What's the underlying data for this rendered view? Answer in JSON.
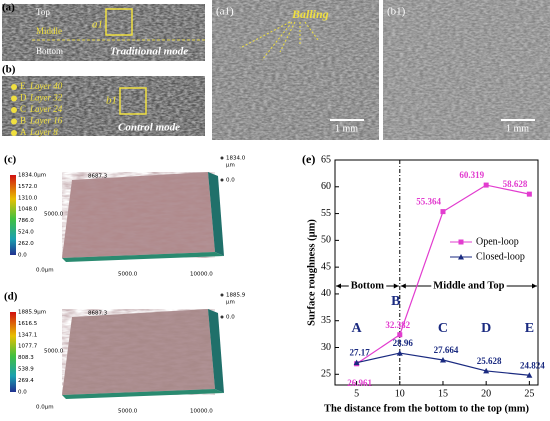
{
  "panels": {
    "a": {
      "label": "(a)",
      "top": "Top",
      "middle": "Middle",
      "bottom": "Bottom",
      "inset": "a1",
      "mode": "Traditional mode"
    },
    "b": {
      "label": "(b)",
      "layers": [
        {
          "letter": "E",
          "text": "Layer 40"
        },
        {
          "letter": "D",
          "text": "Layer 32"
        },
        {
          "letter": "C",
          "text": "Layer 24"
        },
        {
          "letter": "B",
          "text": "Layer 16"
        },
        {
          "letter": "A",
          "text": "Layer 8"
        }
      ],
      "inset": "b1",
      "mode": "Control mode"
    },
    "a1": {
      "label": "(a1)",
      "annotation": "Balling",
      "scale": "1 mm"
    },
    "b1": {
      "label": "(b1)",
      "scale": "1 mm"
    },
    "c": {
      "label": "(c)",
      "colorbar": [
        "1834.0μm",
        "1572.0",
        "1310.0",
        "1048.0",
        "786.0",
        "524.0",
        "262.0",
        "0.0"
      ],
      "z_max": "1834.0",
      "z_unit": "μm",
      "z_min": "0.0",
      "y_max": "8687.3",
      "y_mid": "5000.0",
      "origin": "0.0μm",
      "x_mid": "5000.0",
      "x_max": "10000.0"
    },
    "d": {
      "label": "(d)",
      "colorbar": [
        "1885.9μm",
        "1616.5",
        "1347.1",
        "1077.7",
        "808.3",
        "538.9",
        "269.4",
        "0.0"
      ],
      "z_max": "1885.9",
      "z_unit": "μm",
      "z_min": "0.0",
      "y_max": "8687.3",
      "y_mid": "5000.0",
      "origin": "0.0μm",
      "x_mid": "5000.0",
      "x_max": "10000.0"
    }
  },
  "chart_data": {
    "type": "line",
    "panel_label": "(e)",
    "x_label": "The distance from the bottom to the top (mm)",
    "y_label": "Surface roughness (μm)",
    "x": [
      5,
      10,
      15,
      20,
      25
    ],
    "series": [
      {
        "name": "Open-loop",
        "color": "#e23ccf",
        "values": [
          26.961,
          32.382,
          55.364,
          60.319,
          58.628
        ]
      },
      {
        "name": "Closed-loop",
        "color": "#1a2a80",
        "values": [
          27.17,
          28.96,
          27.664,
          25.628,
          24.824
        ]
      }
    ],
    "point_labels": [
      "A",
      "B",
      "C",
      "D",
      "E"
    ],
    "region_labels": [
      "Bottom",
      "Middle and Top"
    ],
    "divider_x": 10,
    "xlim": [
      2.5,
      26
    ],
    "xticks": [
      5,
      10,
      15,
      20,
      25
    ],
    "ylim": [
      23,
      65
    ],
    "yticks": [
      25,
      30,
      35,
      40,
      45,
      50,
      55,
      60,
      65
    ],
    "legend": "right"
  }
}
